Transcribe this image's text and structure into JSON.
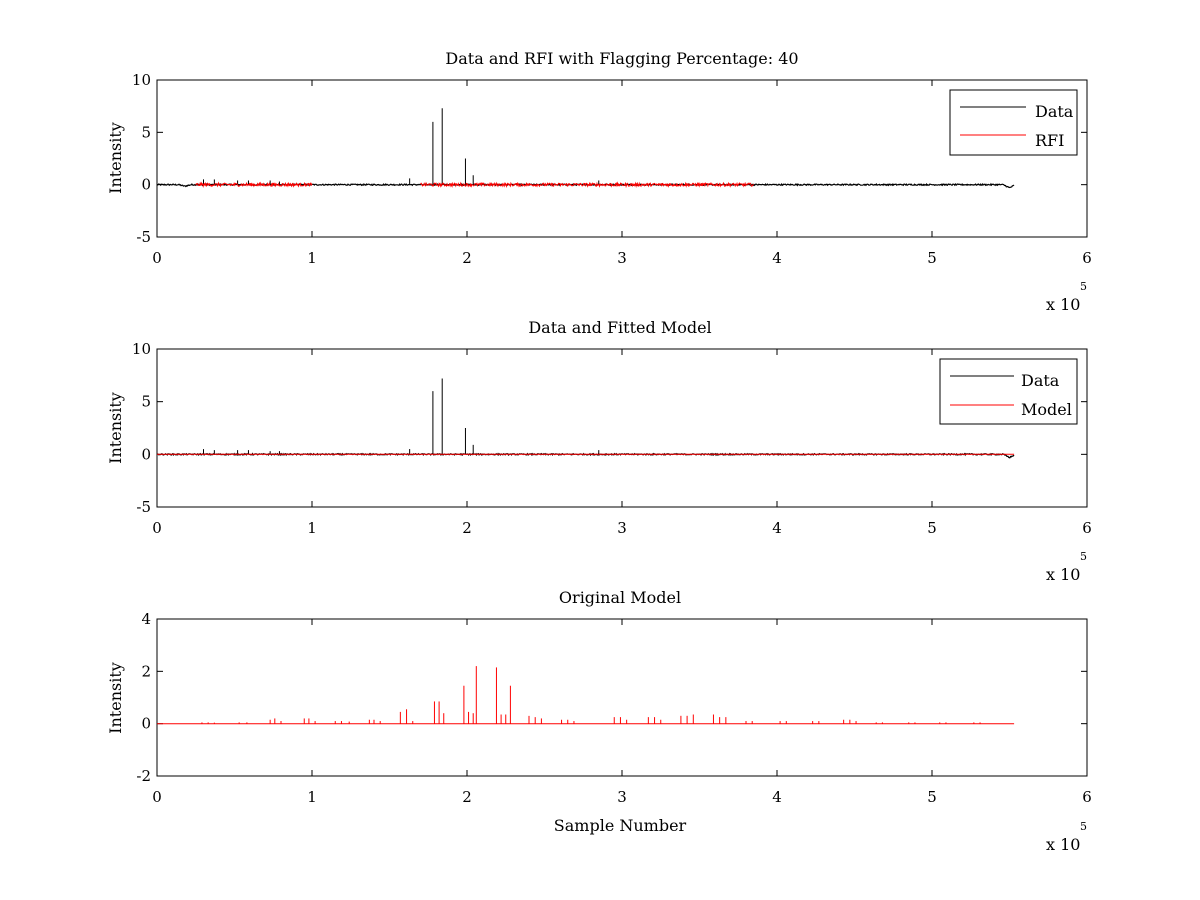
{
  "colors": {
    "data": "#000000",
    "rfi": "#ff0000",
    "model": "#ff0000",
    "background": "#ffffff",
    "axes": "#000000"
  },
  "chart_data": [
    {
      "type": "line",
      "title": "Data and RFI with Flagging Percentage: 40",
      "xlabel": "",
      "ylabel": "Intensity",
      "xlim": [
        0,
        600000
      ],
      "ylim": [
        -5,
        10
      ],
      "x_ticks": [
        "0",
        "1",
        "2",
        "3",
        "4",
        "5",
        "6"
      ],
      "y_ticks": [
        "10",
        "5",
        "0",
        "-5"
      ],
      "x_multiplier": {
        "base": "x 10",
        "exponent": "5"
      },
      "legend": {
        "position": "top-right",
        "entries": [
          "Data",
          "RFI"
        ]
      },
      "series": [
        {
          "name": "Data",
          "color": "#000000",
          "x_range": [
            0,
            553000
          ],
          "baseline": 0.0,
          "spikes": [
            {
              "x": 30000,
              "y": 0.5
            },
            {
              "x": 37000,
              "y": 0.5
            },
            {
              "x": 52000,
              "y": 0.4
            },
            {
              "x": 59000,
              "y": 0.4
            },
            {
              "x": 73000,
              "y": 0.4
            },
            {
              "x": 79000,
              "y": 0.3
            },
            {
              "x": 163000,
              "y": 0.6
            },
            {
              "x": 178000,
              "y": 6.0
            },
            {
              "x": 184000,
              "y": 7.3
            },
            {
              "x": 199000,
              "y": 2.5
            },
            {
              "x": 204000,
              "y": 0.9
            },
            {
              "x": 285000,
              "y": 0.4
            }
          ],
          "dips": [
            {
              "x": 550000,
              "y": -0.3
            },
            {
              "x": 18000,
              "y": -0.15
            }
          ]
        },
        {
          "name": "RFI",
          "color": "#ff0000",
          "segments": [
            {
              "from": 25000,
              "to": 100000
            },
            {
              "from": 170000,
              "to": 385000
            }
          ],
          "baseline": 0.0,
          "level": 0.3
        }
      ]
    },
    {
      "type": "line",
      "title": "Data and Fitted Model",
      "xlabel": "",
      "ylabel": "Intensity",
      "xlim": [
        0,
        600000
      ],
      "ylim": [
        -5,
        10
      ],
      "x_ticks": [
        "0",
        "1",
        "2",
        "3",
        "4",
        "5",
        "6"
      ],
      "y_ticks": [
        "10",
        "5",
        "0",
        "-5"
      ],
      "x_multiplier": {
        "base": "x 10",
        "exponent": "5"
      },
      "legend": {
        "position": "top-right",
        "entries": [
          "Data",
          "Model"
        ]
      },
      "series": [
        {
          "name": "Data",
          "color": "#000000",
          "x_range": [
            0,
            553000
          ],
          "baseline": 0.0,
          "spikes": [
            {
              "x": 30000,
              "y": 0.5
            },
            {
              "x": 37000,
              "y": 0.4
            },
            {
              "x": 52000,
              "y": 0.4
            },
            {
              "x": 59000,
              "y": 0.4
            },
            {
              "x": 73000,
              "y": 0.3
            },
            {
              "x": 79000,
              "y": 0.3
            },
            {
              "x": 163000,
              "y": 0.5
            },
            {
              "x": 178000,
              "y": 6.0
            },
            {
              "x": 184000,
              "y": 7.2
            },
            {
              "x": 199000,
              "y": 2.5
            },
            {
              "x": 204000,
              "y": 0.9
            },
            {
              "x": 285000,
              "y": 0.4
            }
          ],
          "dips": [
            {
              "x": 550000,
              "y": -0.3
            }
          ]
        },
        {
          "name": "Model",
          "color": "#ff0000",
          "x_range": [
            0,
            553000
          ],
          "baseline": 0.0
        }
      ]
    },
    {
      "type": "line",
      "title": "Original Model",
      "xlabel": "Sample Number",
      "ylabel": "Intensity",
      "xlim": [
        0,
        600000
      ],
      "ylim": [
        -2,
        4
      ],
      "x_ticks": [
        "0",
        "1",
        "2",
        "3",
        "4",
        "5",
        "6"
      ],
      "y_ticks": [
        "4",
        "2",
        "0",
        "-2"
      ],
      "x_multiplier": {
        "base": "x 10",
        "exponent": "5"
      },
      "legend": null,
      "series": [
        {
          "color": "#ff0000",
          "x_range": [
            0,
            553000
          ],
          "baseline": 0.0,
          "spikes": [
            {
              "x": 29000,
              "y": 0.05
            },
            {
              "x": 33000,
              "y": 0.05
            },
            {
              "x": 37000,
              "y": 0.04
            },
            {
              "x": 53000,
              "y": 0.05
            },
            {
              "x": 58000,
              "y": 0.05
            },
            {
              "x": 73000,
              "y": 0.15
            },
            {
              "x": 76000,
              "y": 0.2
            },
            {
              "x": 80000,
              "y": 0.1
            },
            {
              "x": 95000,
              "y": 0.2
            },
            {
              "x": 98000,
              "y": 0.2
            },
            {
              "x": 102000,
              "y": 0.1
            },
            {
              "x": 115000,
              "y": 0.1
            },
            {
              "x": 119000,
              "y": 0.1
            },
            {
              "x": 124000,
              "y": 0.08
            },
            {
              "x": 137000,
              "y": 0.15
            },
            {
              "x": 140000,
              "y": 0.15
            },
            {
              "x": 144000,
              "y": 0.1
            },
            {
              "x": 157000,
              "y": 0.45
            },
            {
              "x": 161000,
              "y": 0.55
            },
            {
              "x": 165000,
              "y": 0.1
            },
            {
              "x": 179000,
              "y": 0.85
            },
            {
              "x": 182000,
              "y": 0.85
            },
            {
              "x": 185000,
              "y": 0.4
            },
            {
              "x": 198000,
              "y": 1.45
            },
            {
              "x": 201000,
              "y": 0.45
            },
            {
              "x": 204000,
              "y": 0.4
            },
            {
              "x": 206000,
              "y": 2.2
            },
            {
              "x": 219000,
              "y": 2.15
            },
            {
              "x": 222000,
              "y": 0.35
            },
            {
              "x": 225000,
              "y": 0.35
            },
            {
              "x": 228000,
              "y": 1.45
            },
            {
              "x": 240000,
              "y": 0.3
            },
            {
              "x": 244000,
              "y": 0.25
            },
            {
              "x": 248000,
              "y": 0.2
            },
            {
              "x": 261000,
              "y": 0.15
            },
            {
              "x": 265000,
              "y": 0.15
            },
            {
              "x": 269000,
              "y": 0.1
            },
            {
              "x": 295000,
              "y": 0.25
            },
            {
              "x": 299000,
              "y": 0.25
            },
            {
              "x": 303000,
              "y": 0.15
            },
            {
              "x": 317000,
              "y": 0.25
            },
            {
              "x": 321000,
              "y": 0.25
            },
            {
              "x": 325000,
              "y": 0.15
            },
            {
              "x": 338000,
              "y": 0.3
            },
            {
              "x": 342000,
              "y": 0.3
            },
            {
              "x": 346000,
              "y": 0.35
            },
            {
              "x": 359000,
              "y": 0.35
            },
            {
              "x": 363000,
              "y": 0.25
            },
            {
              "x": 367000,
              "y": 0.25
            },
            {
              "x": 380000,
              "y": 0.1
            },
            {
              "x": 384000,
              "y": 0.1
            },
            {
              "x": 402000,
              "y": 0.1
            },
            {
              "x": 406000,
              "y": 0.1
            },
            {
              "x": 423000,
              "y": 0.1
            },
            {
              "x": 427000,
              "y": 0.1
            },
            {
              "x": 443000,
              "y": 0.15
            },
            {
              "x": 447000,
              "y": 0.15
            },
            {
              "x": 451000,
              "y": 0.1
            },
            {
              "x": 464000,
              "y": 0.05
            },
            {
              "x": 468000,
              "y": 0.05
            },
            {
              "x": 485000,
              "y": 0.05
            },
            {
              "x": 489000,
              "y": 0.05
            },
            {
              "x": 505000,
              "y": 0.05
            },
            {
              "x": 509000,
              "y": 0.05
            },
            {
              "x": 527000,
              "y": 0.05
            },
            {
              "x": 531000,
              "y": 0.05
            }
          ]
        }
      ]
    }
  ]
}
